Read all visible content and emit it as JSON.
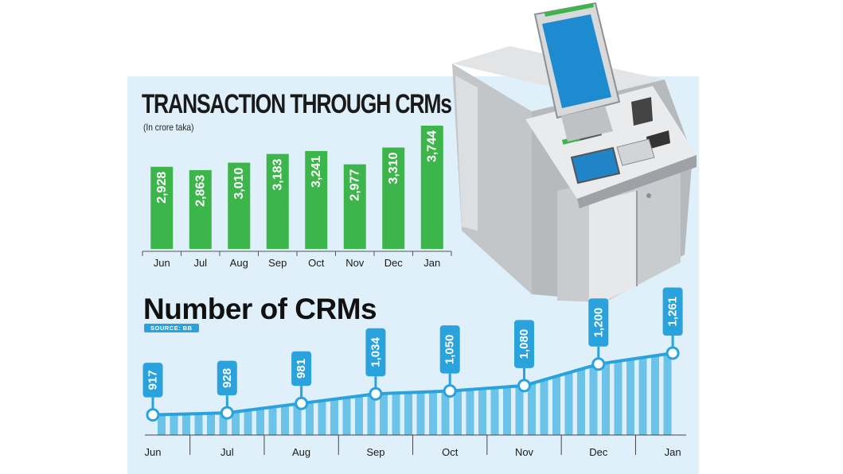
{
  "chart_data": [
    {
      "type": "bar",
      "title": "TRANSACTION THROUGH CRMs",
      "subtitle": "(In crore taka)",
      "categories": [
        "Jun",
        "Jul",
        "Aug",
        "Sep",
        "Oct",
        "Nov",
        "Dec",
        "Jan"
      ],
      "values": [
        2928,
        2863,
        3010,
        3183,
        3241,
        2977,
        3310,
        3744
      ],
      "value_labels": [
        "2,928",
        "2,863",
        "3,010",
        "3,183",
        "3,241",
        "2,977",
        "3,310",
        "3,744"
      ],
      "color": "#3cb54a"
    },
    {
      "type": "line",
      "title": "Number of CRMs",
      "source": "SOURCE: BB",
      "categories": [
        "Jun",
        "Jul",
        "Aug",
        "Sep",
        "Oct",
        "Nov",
        "Dec",
        "Jan"
      ],
      "values": [
        917,
        928,
        981,
        1034,
        1050,
        1080,
        1200,
        1261
      ],
      "value_labels": [
        "917",
        "928",
        "981",
        "1,034",
        "1,050",
        "1,080",
        "1,200",
        "1,261"
      ],
      "color": "#2aa3dc"
    }
  ]
}
